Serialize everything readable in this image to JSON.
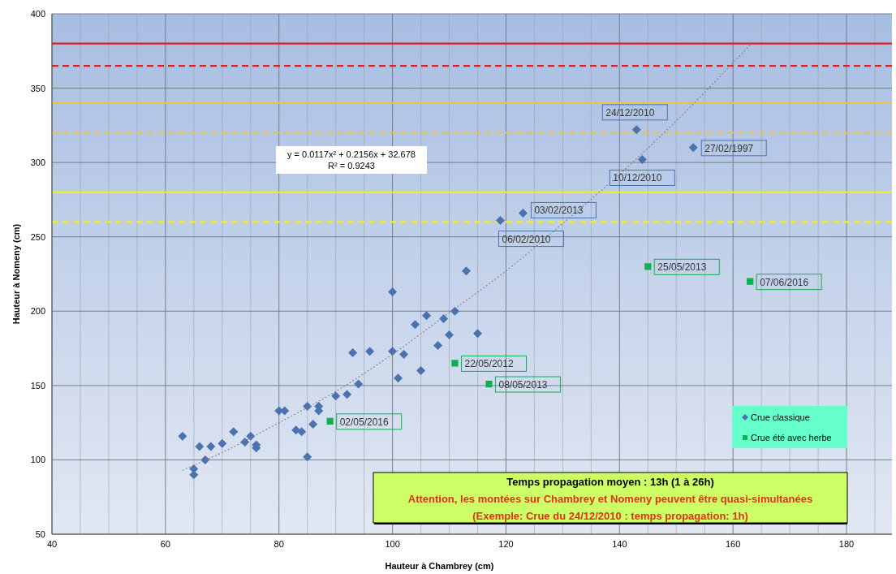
{
  "chart_data": {
    "type": "scatter",
    "xlabel": "Hauteur à Chambrey (cm)",
    "ylabel": "Hauteur à Nomeny (cm)",
    "xlim": [
      40,
      188
    ],
    "xticks": [
      40,
      60,
      80,
      100,
      120,
      140,
      160,
      180
    ],
    "ylim": [
      50,
      400
    ],
    "yticks": [
      50,
      100,
      150,
      200,
      250,
      300,
      350,
      400
    ],
    "grid": true,
    "legend": "bottom right",
    "series": [
      {
        "name": "Crue classique",
        "color": "#4a72b0",
        "marker": "diamond",
        "x": [
          63,
          65,
          65,
          66,
          67,
          68,
          70,
          72,
          74,
          75,
          76,
          76,
          80,
          81,
          83,
          84,
          85,
          85,
          86,
          87,
          87,
          90,
          92,
          93,
          94,
          96,
          100,
          100,
          101,
          102,
          104,
          105,
          106,
          108,
          109,
          110,
          111,
          113,
          115,
          119,
          123,
          143,
          144,
          153
        ],
        "values": [
          116,
          94,
          90,
          109,
          100,
          109,
          111,
          119,
          112,
          116,
          110,
          108,
          133,
          133,
          120,
          119,
          136,
          102,
          124,
          136,
          133,
          143,
          144,
          172,
          151,
          173,
          213,
          173,
          155,
          171,
          191,
          160,
          197,
          177,
          195,
          184,
          200,
          227,
          185,
          261,
          266,
          322,
          302,
          310
        ]
      },
      {
        "name": "Crue été avec herbe",
        "color": "#10b050",
        "marker": "square",
        "x": [
          89,
          111,
          117,
          145,
          163
        ],
        "values": [
          126,
          165,
          151,
          230,
          220
        ]
      },
      {
        "type": "line",
        "color": "#808080",
        "line_style": "dotted",
        "x": [
          63,
          70,
          80,
          90,
          100,
          110,
          120,
          130,
          140,
          150,
          163
        ],
        "values": [
          93,
          105,
          125,
          146,
          171,
          199,
          227,
          259,
          292,
          328,
          379
        ]
      }
    ],
    "ref_lines": [
      {
        "axis": "y",
        "value": 380,
        "color": "#e02020",
        "line_style": "solid"
      },
      {
        "axis": "y",
        "value": 365,
        "color": "#e02020",
        "line_style": "dashed"
      },
      {
        "axis": "y",
        "value": 340,
        "color": "#f0c040",
        "line_style": "solid"
      },
      {
        "axis": "y",
        "value": 320,
        "color": "#f0c040",
        "line_style": "dashed"
      },
      {
        "axis": "y",
        "value": 280,
        "color": "#f0f020",
        "line_style": "solid"
      },
      {
        "axis": "y",
        "value": 260,
        "color": "#f0f020",
        "line_style": "dashed"
      }
    ],
    "annotations": [
      "y = 0.0117x² + 0.2156x + 32.678",
      "R² = 0.9243",
      "Temps propagation moyen : 13h (1 à 26h)",
      "Attention, les montées sur Chambrey et Nomeny peuvent être quasi-simultanées",
      "(Exemple: Crue du  24/12/2010 : temps propagation: 1h)",
      {
        "text": "02/05/2016",
        "x": 89,
        "y": 126
      },
      {
        "text": "22/05/2012",
        "x": 111,
        "y": 165
      },
      {
        "text": "08/05/2013",
        "x": 117,
        "y": 151
      },
      {
        "text": "25/05/2013",
        "x": 145,
        "y": 230
      },
      {
        "text": "07/06/2016",
        "x": 163,
        "y": 220
      },
      {
        "text": "06/02/2010",
        "x": 119,
        "y": 261
      },
      {
        "text": "03/02/2013",
        "x": 123,
        "y": 266
      },
      {
        "text": "24/12/2010",
        "x": 143,
        "y": 322
      },
      {
        "text": "10/12/2010",
        "x": 144,
        "y": 302
      },
      {
        "text": "27/02/1997",
        "x": 153,
        "y": 310
      }
    ]
  }
}
